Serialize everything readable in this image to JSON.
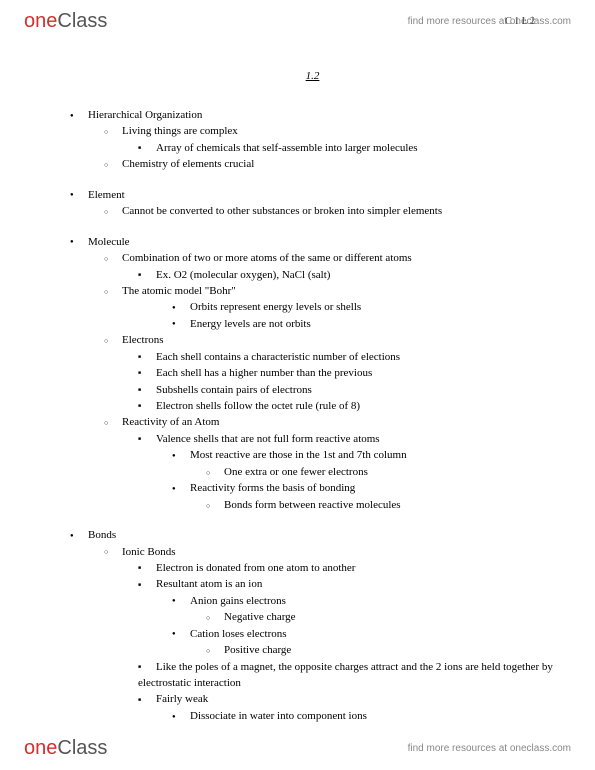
{
  "brand": {
    "one": "one",
    "class": "Class"
  },
  "findMore": "find more resources at oneclass.com",
  "pageCode": "C 1 L 2",
  "title": "1.2",
  "notes": [
    {
      "t": "Hierarchical Organization",
      "c": [
        {
          "t": "Living things are complex",
          "c": [
            {
              "t": "Array of chemicals that self-assemble into larger molecules"
            }
          ]
        },
        {
          "t": "Chemistry of elements crucial"
        }
      ]
    },
    {
      "t": "Element",
      "c": [
        {
          "t": "Cannot be converted to other substances or broken into simpler elements"
        }
      ]
    },
    {
      "t": "Molecule",
      "c": [
        {
          "t": "Combination of two or more atoms of the same or different atoms",
          "c": [
            {
              "t": "Ex. O2 (molecular oxygen), NaCl (salt)"
            }
          ]
        },
        {
          "t": "The atomic model \"Bohr\"",
          "c": [
            {
              "t": "",
              "c": [
                {
                  "t": "Orbits represent energy levels or shells"
                },
                {
                  "t": "Energy levels are not orbits"
                }
              ]
            }
          ],
          "skipL3": true
        },
        {
          "t": "Electrons",
          "c": [
            {
              "t": "Each shell contains a characteristic number of elections"
            },
            {
              "t": "Each shell has a higher number than the previous"
            },
            {
              "t": "Subshells contain pairs of electrons"
            },
            {
              "t": "Electron shells follow the octet rule (rule of 8)"
            }
          ]
        },
        {
          "t": "Reactivity of an Atom",
          "c": [
            {
              "t": "Valence shells that are not full form reactive atoms",
              "c": [
                {
                  "t": "Most reactive are those in the 1st and 7th column",
                  "c": [
                    {
                      "t": "One extra or one fewer electrons"
                    }
                  ]
                },
                {
                  "t": "Reactivity forms the basis of bonding",
                  "c": [
                    {
                      "t": "Bonds form between reactive molecules"
                    }
                  ]
                }
              ]
            }
          ]
        }
      ]
    },
    {
      "t": "Bonds",
      "c": [
        {
          "t": "Ionic Bonds",
          "c": [
            {
              "t": "Electron is donated from one atom to another"
            },
            {
              "t": "Resultant atom is an ion",
              "c": [
                {
                  "t": "Anion gains electrons",
                  "c": [
                    {
                      "t": "Negative charge"
                    }
                  ]
                },
                {
                  "t": "Cation loses electrons",
                  "c": [
                    {
                      "t": "Positive charge"
                    }
                  ]
                }
              ]
            },
            {
              "t": "Like the poles of a magnet, the opposite charges attract and the 2 ions are held together by electrostatic interaction"
            },
            {
              "t": "Fairly weak",
              "c": [
                {
                  "t": "Dissociate in water into component ions"
                }
              ]
            }
          ]
        }
      ]
    }
  ]
}
